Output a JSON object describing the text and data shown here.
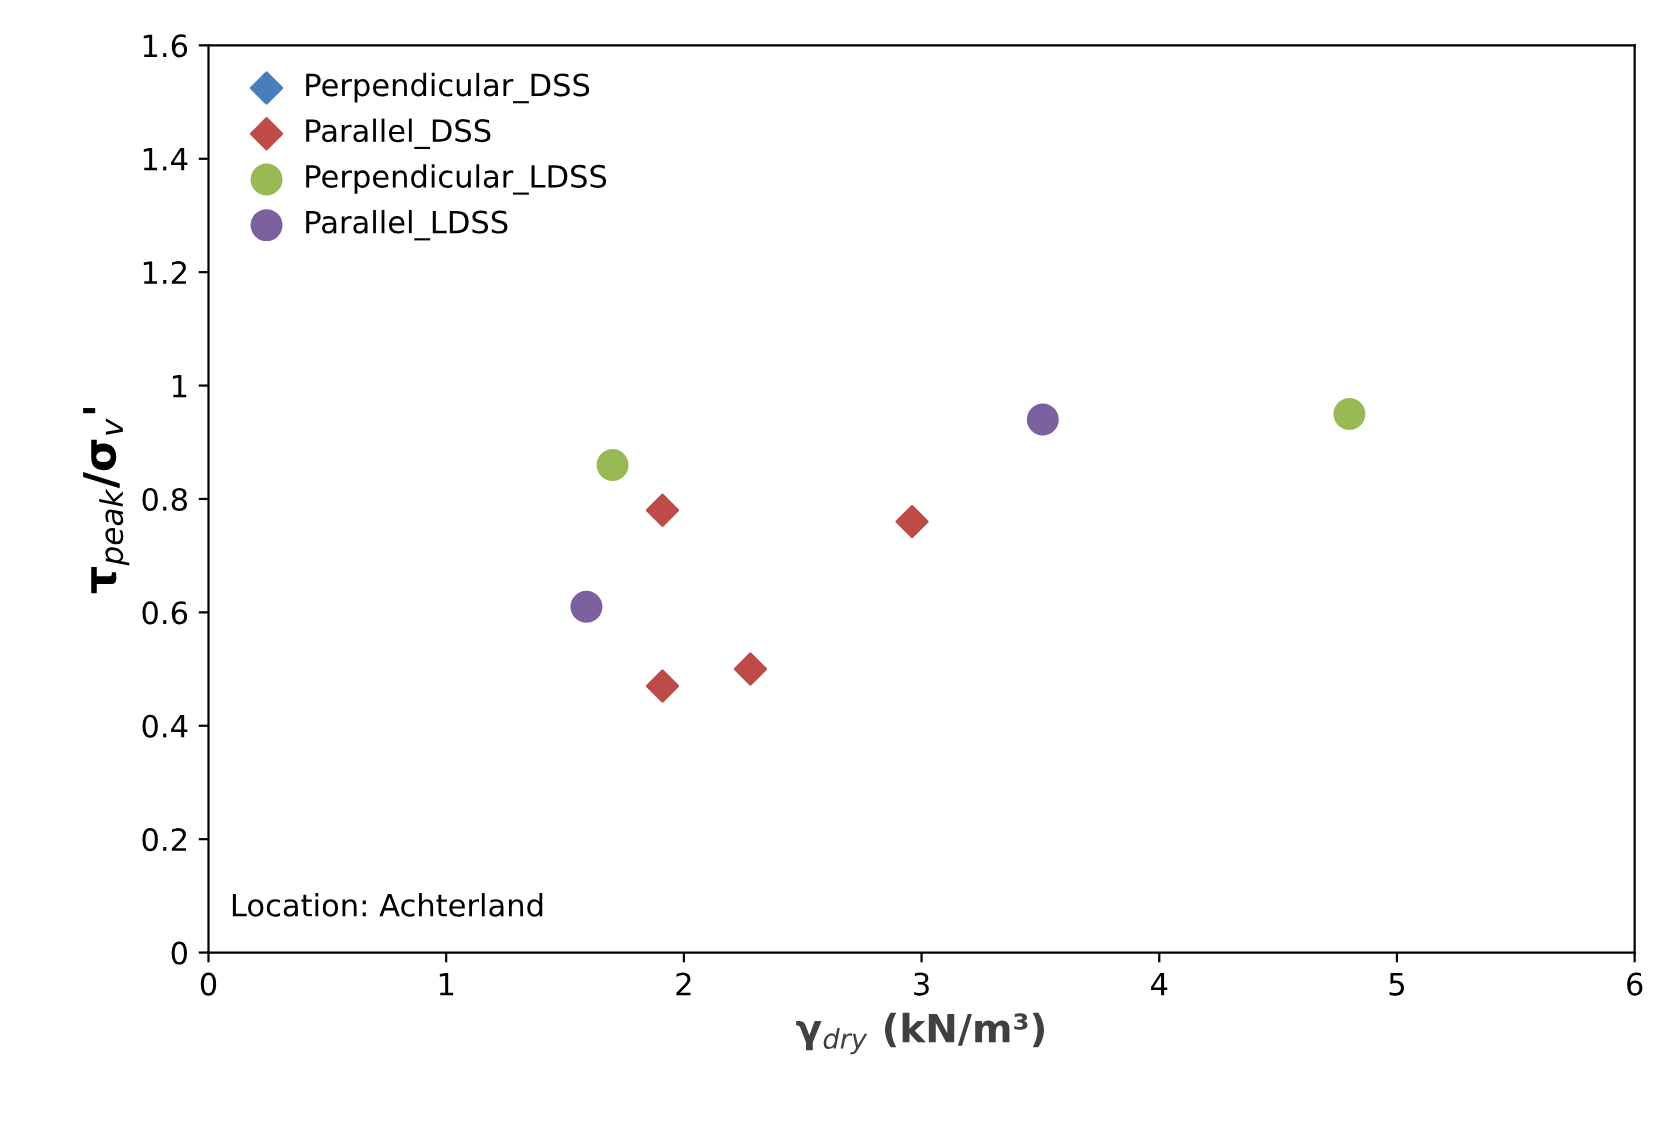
{
  "chart_data": {
    "type": "scatter",
    "xlabel": "γ$_{dry}$ (kN/m³)",
    "ylabel": "τ$_{peak}$/σ$_{v}$'",
    "xlim": [
      0,
      6
    ],
    "xticks": [
      0,
      1,
      2,
      3,
      4,
      5,
      6
    ],
    "ylim": [
      0,
      1.6
    ],
    "yticks": [
      0,
      0.2,
      0.4,
      0.6,
      0.8,
      1,
      1.2,
      1.4,
      1.6
    ],
    "grid": false,
    "legend": "top left",
    "annotations": [
      "Location: Achterland"
    ],
    "series": [
      {
        "name": "Perpendicular_DSS",
        "color": "#4a7ebb",
        "marker": "diamond"
      },
      {
        "name": "Parallel_DSS",
        "color": "#be4b48",
        "marker": "diamond",
        "x": [
          1.91,
          1.91,
          2.28,
          2.96
        ],
        "values": [
          0.78,
          0.47,
          0.5,
          0.76
        ]
      },
      {
        "name": "Perpendicular_LDSS",
        "color": "#98b954",
        "marker": "circle",
        "x": [
          1.7,
          4.8
        ],
        "values": [
          0.86,
          0.95
        ]
      },
      {
        "name": "Parallel_LDSS",
        "color": "#7d60a0",
        "marker": "circle",
        "x": [
          1.59,
          3.51
        ],
        "values": [
          0.61,
          0.94
        ]
      }
    ]
  }
}
